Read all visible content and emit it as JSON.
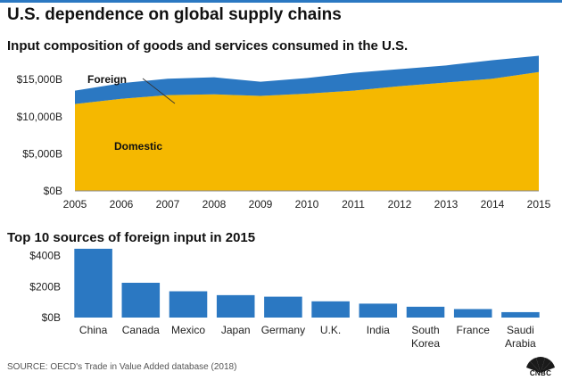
{
  "title": "U.S. dependence on global supply chains",
  "source": "SOURCE: OECD's Trade in Value Added database (2018)",
  "logo_text": "CNBC",
  "colors": {
    "domestic": "#f5b800",
    "foreign": "#2b78c2",
    "bar": "#2b78c2",
    "rule": "#2b78c2"
  },
  "chart_data": [
    {
      "type": "area",
      "title": "Input composition of goods and services consumed in the U.S.",
      "x": [
        "2005",
        "2006",
        "2007",
        "2008",
        "2009",
        "2010",
        "2011",
        "2012",
        "2013",
        "2014",
        "2015"
      ],
      "stacked": true,
      "series": [
        {
          "name": "Domestic",
          "values": [
            11700,
            12400,
            12900,
            13000,
            12800,
            13100,
            13500,
            14100,
            14600,
            15100,
            16000
          ]
        },
        {
          "name": "Foreign",
          "values": [
            1800,
            2100,
            2200,
            2300,
            1900,
            2100,
            2400,
            2300,
            2300,
            2500,
            2200
          ]
        }
      ],
      "y_ticks": [
        "$0B",
        "$5,000B",
        "$10,000B",
        "$15,000B"
      ],
      "y_tick_values": [
        0,
        5000,
        10000,
        15000
      ],
      "ylim": [
        0,
        18500
      ],
      "grid": false
    },
    {
      "type": "bar",
      "title": "Top 10 sources of foreign input in 2015",
      "categories": [
        "China",
        "Canada",
        "Mexico",
        "Japan",
        "Germany",
        "U.K.",
        "India",
        "South Korea",
        "France",
        "Saudi Arabia"
      ],
      "values": [
        445,
        225,
        170,
        145,
        135,
        105,
        90,
        70,
        55,
        35
      ],
      "y_ticks": [
        "$0B",
        "$200B",
        "$400B"
      ],
      "y_tick_values": [
        0,
        200,
        400
      ],
      "ylim": [
        0,
        450
      ],
      "grid": false
    }
  ]
}
